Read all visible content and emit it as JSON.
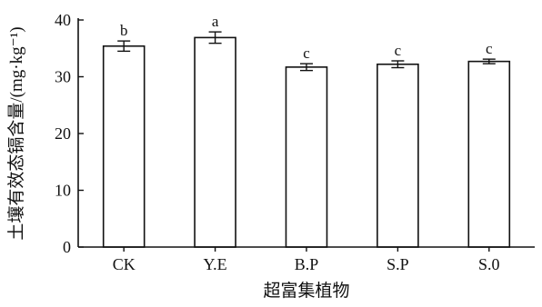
{
  "chart_data": {
    "type": "bar",
    "title": "",
    "xlabel": "超富集植物",
    "ylabel": "土壤有效态镉含量/(mg·kg⁻¹)",
    "ylim": [
      0,
      40
    ],
    "yticks": [
      0,
      10,
      20,
      30,
      40
    ],
    "categories": [
      "CK",
      "Y.E",
      "B.P",
      "S.P",
      "S.0"
    ],
    "values": [
      35.4,
      36.9,
      31.7,
      32.2,
      32.7
    ],
    "errors": [
      0.9,
      1.0,
      0.6,
      0.6,
      0.4
    ],
    "significance_labels": [
      "b",
      "a",
      "c",
      "c",
      "c"
    ],
    "grid": false,
    "bar_fill": "#ffffff",
    "bar_stroke": "#111111"
  }
}
